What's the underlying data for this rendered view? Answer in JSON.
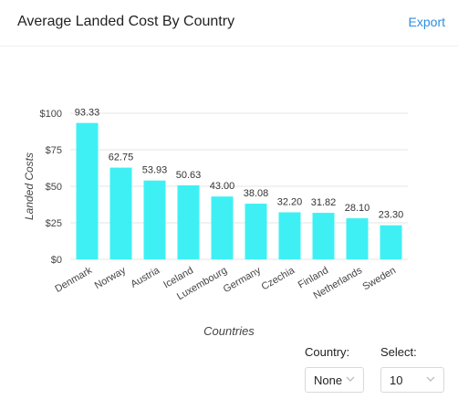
{
  "header": {
    "title": "Average Landed Cost By Country",
    "export_label": "Export"
  },
  "chart_data": {
    "type": "bar",
    "categories": [
      "Denmark",
      "Norway",
      "Austria",
      "Iceland",
      "Luxembourg",
      "Germany",
      "Czechia",
      "Finland",
      "Netherlands",
      "Sweden"
    ],
    "values": [
      93.33,
      62.75,
      53.93,
      50.63,
      43.0,
      38.08,
      32.2,
      31.82,
      28.1,
      23.3
    ],
    "value_labels": [
      "93.33",
      "62.75",
      "53.93",
      "50.63",
      "43.00",
      "38.08",
      "32.20",
      "31.82",
      "28.10",
      "23.30"
    ],
    "xlabel": "Countries",
    "ylabel": "Landed Costs",
    "ylim": [
      0,
      100
    ],
    "yticks": [
      0,
      25,
      50,
      75,
      100
    ],
    "ytick_labels": [
      "$0",
      "$25",
      "$50",
      "$75",
      "$100"
    ],
    "grid": true,
    "bar_color": "#3ef0f3"
  },
  "controls": {
    "country": {
      "label": "Country:",
      "value": "None"
    },
    "select": {
      "label": "Select:",
      "value": "10"
    }
  },
  "colors": {
    "accent": "#2d8fe0",
    "bar": "#3ef0f3",
    "grid": "#e4e4e4"
  }
}
